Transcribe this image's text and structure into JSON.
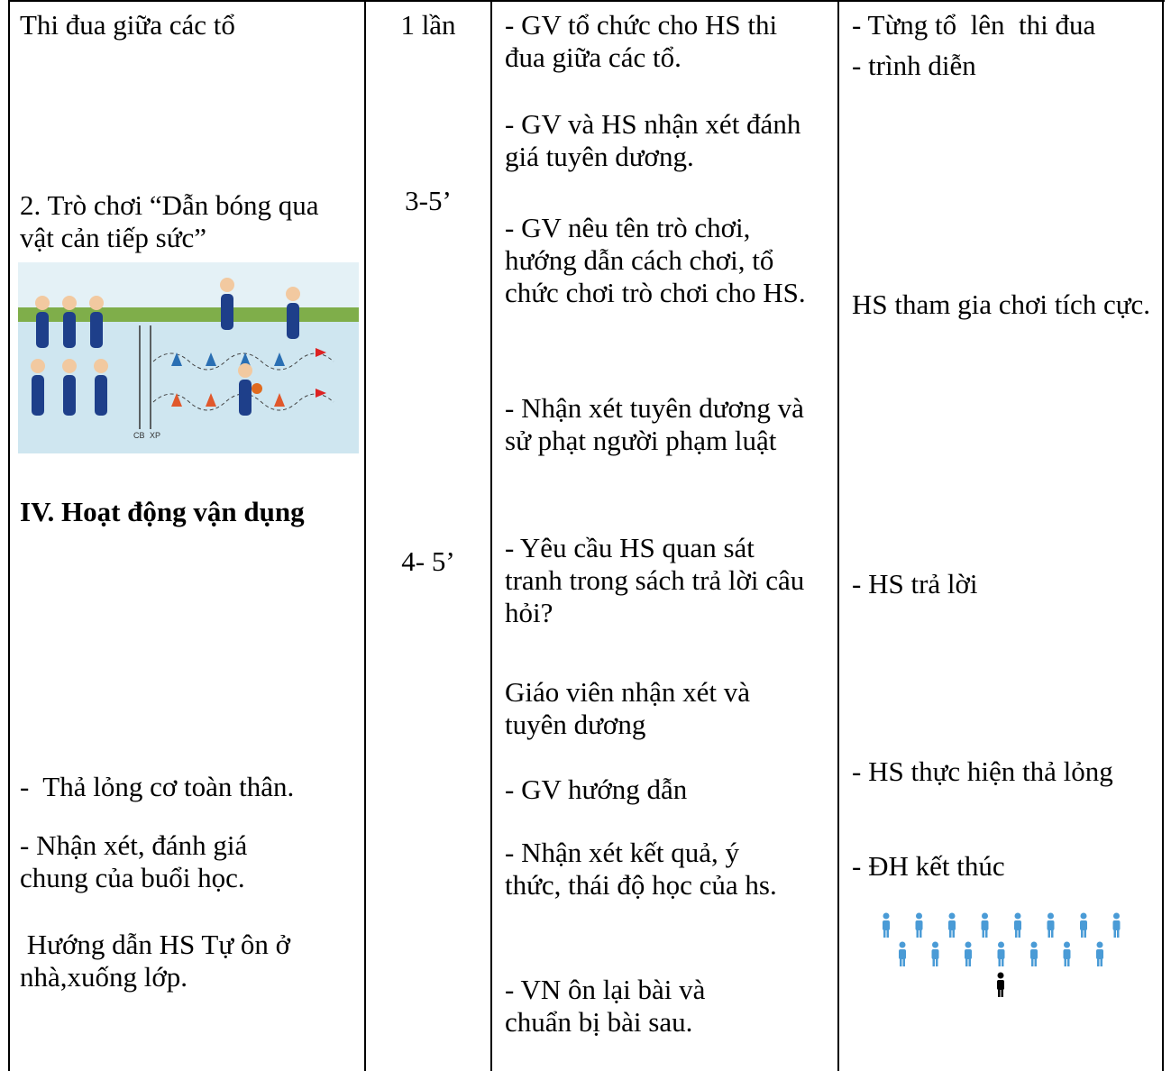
{
  "activities": [
    "Thi đua giữa các tổ",
    "2. Trò chơi “Dẫn bóng qua vật cản tiếp sức”",
    "IV. Hoạt động vận dụng",
    "-  Thả lỏng cơ toàn thân.",
    "- Nhận xét, đánh giá chung của buổi học.",
    " Hướng dẫn HS Tự ôn ở nhà,xuống lớp."
  ],
  "time": [
    "1 lần",
    "3-5’",
    "4- 5’"
  ],
  "teacher": [
    "- GV tổ chức cho HS thi đua giữa các tổ.",
    "- GV và HS nhận xét đánh giá tuyên dương.",
    "- GV nêu tên trò chơi, hướng dẫn cách chơi, tổ chức chơi trò chơi cho HS.",
    "- Nhận xét tuyên dương và sử phạt người phạm luật",
    "- Yêu cầu HS quan sát tranh trong sách trả lời câu hỏi?",
    "Giáo viên nhận xét và tuyên dương",
    "- GV hướng dẫn",
    "- Nhận xét kết quả, ý thức, thái độ học của hs.",
    "- VN ôn lại bài và chuẩn bị bài sau."
  ],
  "students": [
    "- Từng tổ  lên  thi đua",
    "- trình diễn",
    "HS tham gia chơi tích cực.",
    "- HS trả lời",
    "- HS thực hiện thả lỏng",
    "- ĐH kết thúc"
  ],
  "figure": {
    "labels": [
      "CB",
      "XP"
    ]
  }
}
